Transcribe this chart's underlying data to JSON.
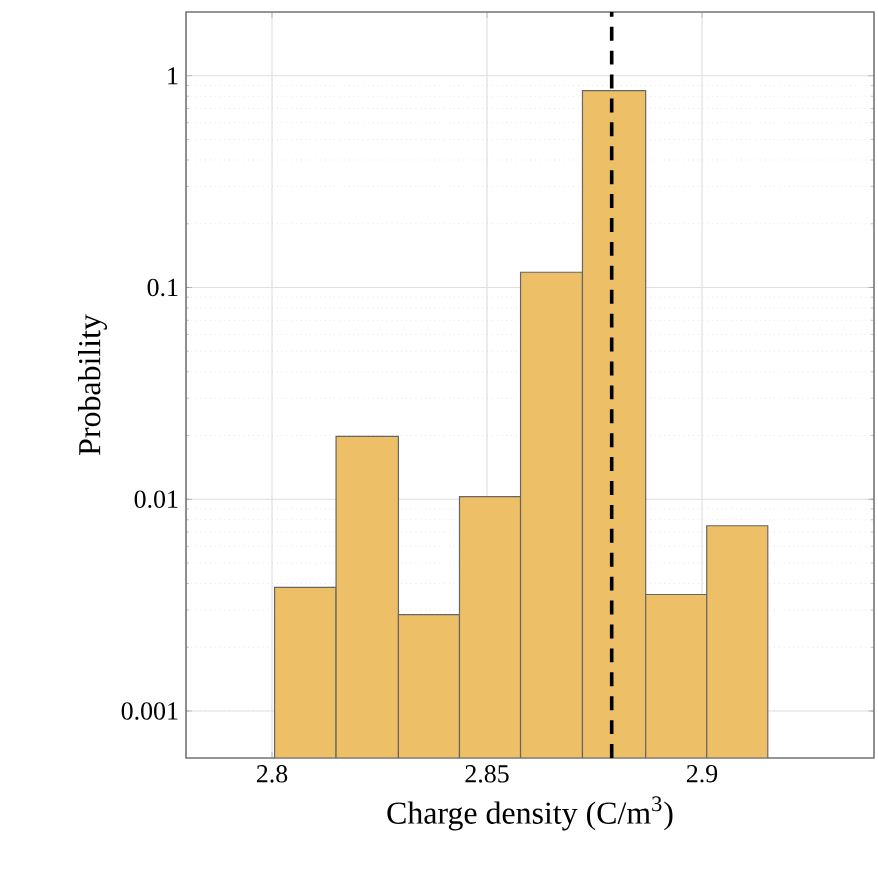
{
  "chart_data": {
    "type": "histogram",
    "xlabel": "Charge density (C/m$^{3}$)",
    "ylabel": "Probability",
    "bins": [
      2.8006,
      2.8149,
      2.8294,
      2.8436,
      2.8578,
      2.8722,
      2.8869,
      2.9011,
      2.9153
    ],
    "values": [
      0.00384,
      0.0198,
      0.00285,
      0.0103,
      0.118,
      0.85,
      0.00355,
      0.0075
    ],
    "color": "#edbf66",
    "xlim": [
      2.78,
      2.94
    ],
    "ylim": [
      0.0006,
      2
    ],
    "xticks": [
      2.8,
      2.85,
      2.9
    ],
    "yticks": [
      0.001,
      0.01,
      0.1,
      1
    ],
    "log": "y",
    "grid": true,
    "ref_lines": [
      {
        "axis": "x",
        "value": 2.879,
        "color": "#000000",
        "line_style": "dashed"
      }
    ]
  }
}
